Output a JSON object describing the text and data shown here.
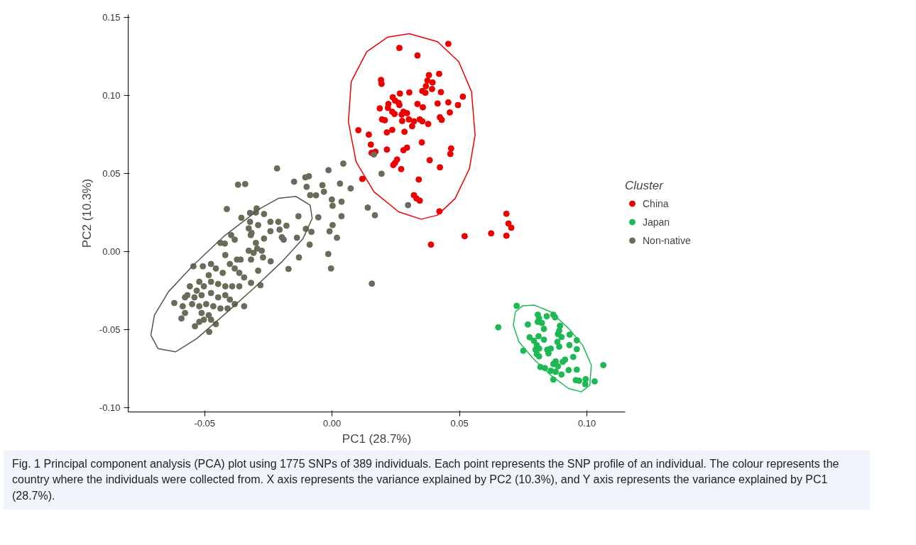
{
  "chart_data": {
    "type": "scatter",
    "xlabel": "PC1 (28.7%)",
    "ylabel": "PC2 (10.3%)",
    "legend_title": "Cluster",
    "legend": "right",
    "marker": "circle",
    "grid": false,
    "xlim": [
      -0.08,
      0.115
    ],
    "ylim": [
      -0.1026,
      0.152
    ],
    "xticks": [
      {
        "value": -0.05,
        "label": "-0.05"
      },
      {
        "value": 0,
        "label": "0.00"
      },
      {
        "value": 0.05,
        "label": "0.05"
      },
      {
        "value": 0.1,
        "label": "0.10"
      }
    ],
    "yticks": [
      {
        "value": -0.1,
        "label": "-0.10"
      },
      {
        "value": -0.05,
        "label": "-0.05"
      },
      {
        "value": 0,
        "label": "0.00"
      },
      {
        "value": 0.05,
        "label": "0.05"
      },
      {
        "value": 0.1,
        "label": "0.10"
      },
      {
        "value": 0.15,
        "label": "0.15"
      }
    ],
    "series": [
      {
        "name": "China",
        "color": "#ee0000",
        "x": [
          0.0264,
          0.0335,
          0.0456,
          0.0192,
          0.0194,
          0.038,
          0.042,
          0.0374,
          0.0394,
          0.0368,
          0.0354,
          0.0366,
          0.0392,
          0.0427,
          0.0266,
          0.0303,
          0.0238,
          0.0247,
          0.0261,
          0.0264,
          0.0221,
          0.0187,
          0.0219,
          0.0236,
          0.0245,
          0.028,
          0.0294,
          0.0273,
          0.0335,
          0.0356,
          0.0414,
          0.0456,
          0.0513,
          0.0494,
          0.0462,
          0.0196,
          0.0207,
          0.0275,
          0.0301,
          0.0321,
          0.0344,
          0.0354,
          0.0377,
          0.0314,
          0.0423,
          0.043,
          0.0103,
          0.0144,
          0.0215,
          0.0236,
          0.0284,
          0.0152,
          0.0155,
          0.017,
          0.0215,
          0.028,
          0.0294,
          0.0352,
          0.0467,
          0.0464,
          0.0255,
          0.0247,
          0.024,
          0.0271,
          0.0383,
          0.0423,
          0.0119,
          0.034,
          0.0321,
          0.0331,
          0.0344,
          0.0421,
          0.0684,
          0.0692,
          0.0703,
          0.0684,
          0.0624,
          0.052,
          0.0388
        ],
        "values": [
          0.1306,
          0.1258,
          0.1332,
          0.1101,
          0.1076,
          0.1132,
          0.114,
          0.1097,
          0.1085,
          0.1061,
          0.103,
          0.1019,
          0.1043,
          0.1023,
          0.1014,
          0.1021,
          0.099,
          0.0969,
          0.0954,
          0.094,
          0.0947,
          0.0919,
          0.0922,
          0.0897,
          0.0883,
          0.0897,
          0.0888,
          0.0879,
          0.0947,
          0.0926,
          0.095,
          0.0957,
          0.0994,
          0.094,
          0.0893,
          0.0848,
          0.0843,
          0.0838,
          0.0848,
          0.0836,
          0.0848,
          0.0836,
          0.0819,
          0.0805,
          0.0862,
          0.0845,
          0.0779,
          0.0751,
          0.0765,
          0.0781,
          0.0769,
          0.0687,
          0.0634,
          0.0641,
          0.0655,
          0.0651,
          0.0667,
          0.0701,
          0.0662,
          0.0627,
          0.0591,
          0.057,
          0.0556,
          0.053,
          0.0587,
          0.0541,
          0.0467,
          0.0463,
          0.0363,
          0.0342,
          0.0328,
          0.0259,
          0.0244,
          0.0181,
          0.0154,
          0.0103,
          0.0118,
          0.01,
          0.0046
        ]
      },
      {
        "name": "Japan",
        "color": "#1db954",
        "x": [
          0.0724,
          0.0652,
          0.0807,
          0.0812,
          0.0842,
          0.0868,
          0.0875,
          0.0807,
          0.0823,
          0.0768,
          0.0831,
          0.0894,
          0.0891,
          0.0886,
          0.09,
          0.0932,
          0.0775,
          0.0792,
          0.081,
          0.0831,
          0.0877,
          0.0884,
          0.096,
          0.0931,
          0.0803,
          0.0798,
          0.0812,
          0.0844,
          0.0858,
          0.0891,
          0.096,
          0.075,
          0.0803,
          0.0812,
          0.0849,
          0.0946,
          0.0914,
          0.0905,
          0.0877,
          0.0868,
          0.0886,
          0.0817,
          0.0835,
          0.0858,
          0.0877,
          0.0928,
          0.096,
          0.09,
          0.0868,
          0.0956,
          0.0969,
          0.0995,
          0.103,
          0.0993,
          0.1064
        ],
        "values": [
          -0.0346,
          -0.0484,
          -0.0403,
          -0.0427,
          -0.0413,
          -0.0403,
          -0.042,
          -0.0449,
          -0.0456,
          -0.0466,
          -0.0494,
          -0.0474,
          -0.0506,
          -0.0527,
          -0.0546,
          -0.0531,
          -0.0548,
          -0.057,
          -0.0541,
          -0.0563,
          null,
          -0.0577,
          -0.0567,
          -0.0598,
          -0.0598,
          -0.0627,
          -0.062,
          -0.0627,
          -0.062,
          -0.0608,
          -0.0624,
          -0.0634,
          -0.0655,
          -0.067,
          -0.0651,
          -0.0674,
          -0.0691,
          -0.0705,
          -0.0702,
          -0.0719,
          -0.0734,
          -0.0738,
          -0.0745,
          -0.0762,
          -0.0769,
          -0.0758,
          -0.0755,
          -0.0786,
          -0.0819,
          -0.0822,
          -0.0826,
          -0.0816,
          -0.083,
          -0.0848,
          -0.0726
        ]
      },
      {
        "name": "Non-native",
        "color": "#6b6b5a",
        "x": [
          -0.0369,
          -0.0341,
          -0.0413,
          -0.0356,
          -0.0322,
          -0.0296,
          -0.0299,
          -0.0267,
          -0.029,
          -0.0322,
          -0.0327,
          -0.0319,
          -0.0316,
          -0.0267,
          -0.0396,
          -0.0382,
          -0.0438,
          -0.0421,
          -0.0299,
          -0.0294,
          -0.0276,
          -0.0271,
          -0.0327,
          -0.0308,
          -0.0318,
          -0.029,
          -0.0318,
          -0.0281,
          -0.0419,
          -0.0373,
          -0.0359,
          -0.0401,
          -0.0382,
          -0.0364,
          -0.0345,
          -0.0475,
          -0.0456,
          -0.0429,
          -0.0507,
          -0.0544,
          -0.0484,
          -0.0475,
          -0.0447,
          -0.0419,
          -0.0392,
          -0.0364,
          -0.0521,
          -0.0503,
          -0.0531,
          -0.0558,
          -0.0568,
          -0.054,
          -0.0512,
          -0.0475,
          -0.0447,
          -0.0419,
          -0.0401,
          -0.0577,
          -0.0549,
          -0.0521,
          -0.0494,
          -0.0466,
          -0.0438,
          -0.041,
          -0.0382,
          -0.0345,
          -0.0619,
          -0.0586,
          -0.0512,
          -0.0484,
          -0.0503,
          -0.0475,
          -0.0577,
          -0.0591,
          -0.0538,
          -0.0521,
          -0.0456,
          -0.0482,
          -0.0216,
          0.0044,
          -0.0014,
          -0.0149,
          -0.0105,
          -0.0091,
          -0.01,
          -0.0038,
          -0.0032,
          0.0031,
          0.0073,
          -0.0086,
          -0.0063,
          -0.0001,
          0.0002,
          0.0037,
          -0.0132,
          -0.0054,
          0.0037,
          0.0002,
          -0.001,
          0.0019,
          0.014,
          0.0168,
          0.0194,
          -0.0088,
          -0.0015,
          -0.013,
          -0.0004,
          -0.0171,
          0.0156,
          -0.0103,
          -0.0081,
          -0.0138,
          0.0298,
          -0.0242,
          -0.0211,
          -0.0179,
          -0.0206,
          -0.0197,
          -0.019,
          -0.0242,
          -0.0241,
          0.0164
        ],
        "values": [
          0.043,
          0.0434,
          0.0274,
          0.0218,
          0.0249,
          0.0278,
          0.0252,
          0.0242,
          0.0171,
          0.0192,
          0.015,
          0.0107,
          0.0121,
          0.0085,
          0.0107,
          0.0078,
          0.0057,
          0.0053,
          0.0057,
          0.0021,
          0.0007,
          -0.0036,
          0.0007,
          -0.0007,
          -0.005,
          -0.0121,
          -0.0199,
          -0.0214,
          -0.0021,
          -0.005,
          -0.005,
          -0.0078,
          -0.0107,
          -0.0135,
          -0.0164,
          -0.0078,
          -0.0107,
          -0.0135,
          -0.0093,
          -0.0093,
          -0.015,
          -0.0192,
          -0.0206,
          -0.0221,
          -0.0221,
          -0.0221,
          -0.0192,
          -0.0221,
          -0.0249,
          -0.0221,
          -0.0278,
          -0.0292,
          -0.0278,
          -0.0264,
          -0.0292,
          -0.0278,
          -0.0306,
          -0.0292,
          -0.0335,
          -0.0349,
          -0.0335,
          -0.0349,
          -0.0363,
          -0.0363,
          -0.0335,
          -0.0349,
          -0.0328,
          -0.0349,
          -0.0392,
          -0.0406,
          -0.0435,
          -0.0435,
          -0.0392,
          -0.0427,
          -0.0477,
          -0.0449,
          -0.0463,
          -0.0513,
          0.0534,
          0.0565,
          0.0523,
          0.0449,
          0.0477,
          0.0484,
          0.0416,
          0.0427,
          0.0385,
          0.0437,
          0.0406,
          0.0363,
          0.0362,
          0.0335,
          0.0295,
          0.0321,
          0.0228,
          0.0221,
          0.0228,
          0.0171,
          0.0131,
          0.009,
          0.0283,
          0.0234,
          0.05,
          0.0046,
          -0.0014,
          -0.0036,
          -0.0107,
          -0.011,
          -0.0204,
          0.0147,
          0.0128,
          0.009,
          0.0299,
          0.0192,
          0.0192,
          0.0167,
          0.0142,
          0.0093,
          0.0078,
          0.0132,
          -0.0061,
          0.0624
        ]
      },
      {
        "type": "line",
        "marker": "none",
        "color": "#ee0000",
        "x": [
          0.0064,
          0.0075,
          0.0136,
          0.0219,
          0.0303,
          0.0414,
          0.0497,
          0.0547,
          0.0561,
          null,
          0.0064,
          0.0094,
          0.0164,
          0.0261,
          0.035,
          0.0414,
          0.0483,
          0.0539,
          0.0561
        ],
        "values": [
          0.0833,
          0.109,
          0.1282,
          0.1376,
          0.1397,
          0.1346,
          0.1218,
          0.1026,
          0.0748,
          null,
          0.0833,
          0.0577,
          0.0385,
          0.0256,
          0.0209,
          0.0235,
          0.0342,
          0.0534,
          0.0748
        ]
      },
      {
        "type": "line",
        "marker": "none",
        "color": "#1db954",
        "x": [
          0.0711,
          0.0719,
          0.0747,
          0.0794,
          0.0858,
          0.0928,
          0.0983,
          0.1017,
          null,
          0.0711,
          0.0733,
          0.0789,
          0.0858,
          0.0928,
          0.0978,
          0.1011,
          0.1017
        ],
        "values": [
          -0.047,
          -0.0385,
          -0.0346,
          -0.0342,
          -0.0385,
          -0.0491,
          -0.0598,
          -0.0726,
          null,
          -0.047,
          -0.0577,
          -0.0684,
          -0.0791,
          -0.0876,
          -0.0897,
          -0.0855,
          -0.0726
        ]
      },
      {
        "type": "line",
        "marker": "none",
        "color": "#55554a",
        "x": [
          -0.0711,
          -0.0697,
          -0.0642,
          -0.0544,
          -0.0419,
          -0.0281,
          -0.0211,
          -0.0142,
          -0.0086,
          -0.0078,
          null,
          -0.0711,
          -0.0683,
          -0.0614,
          -0.0531,
          -0.0419,
          -0.0308,
          -0.0197,
          -0.0114,
          -0.0078
        ],
        "values": [
          -0.0534,
          -0.0406,
          -0.0256,
          -0.0085,
          0.0107,
          0.0278,
          0.0342,
          0.0355,
          0.0299,
          0.0214,
          null,
          -0.0534,
          -0.062,
          -0.0641,
          -0.0556,
          -0.0397,
          -0.0235,
          -0.0064,
          0.0085,
          0.0214
        ]
      }
    ],
    "annotations": [
      "Fig. 1 Principal component analysis (PCA) plot using 1775 SNPs of 389 individuals. Each point represents the SNP profile of an individual. The colour represents the country where the individuals were collected from. X axis represents the variance explained by PC2 (10.3%), and Y axis represents the variance explained by PC1 (28.7%)."
    ]
  }
}
